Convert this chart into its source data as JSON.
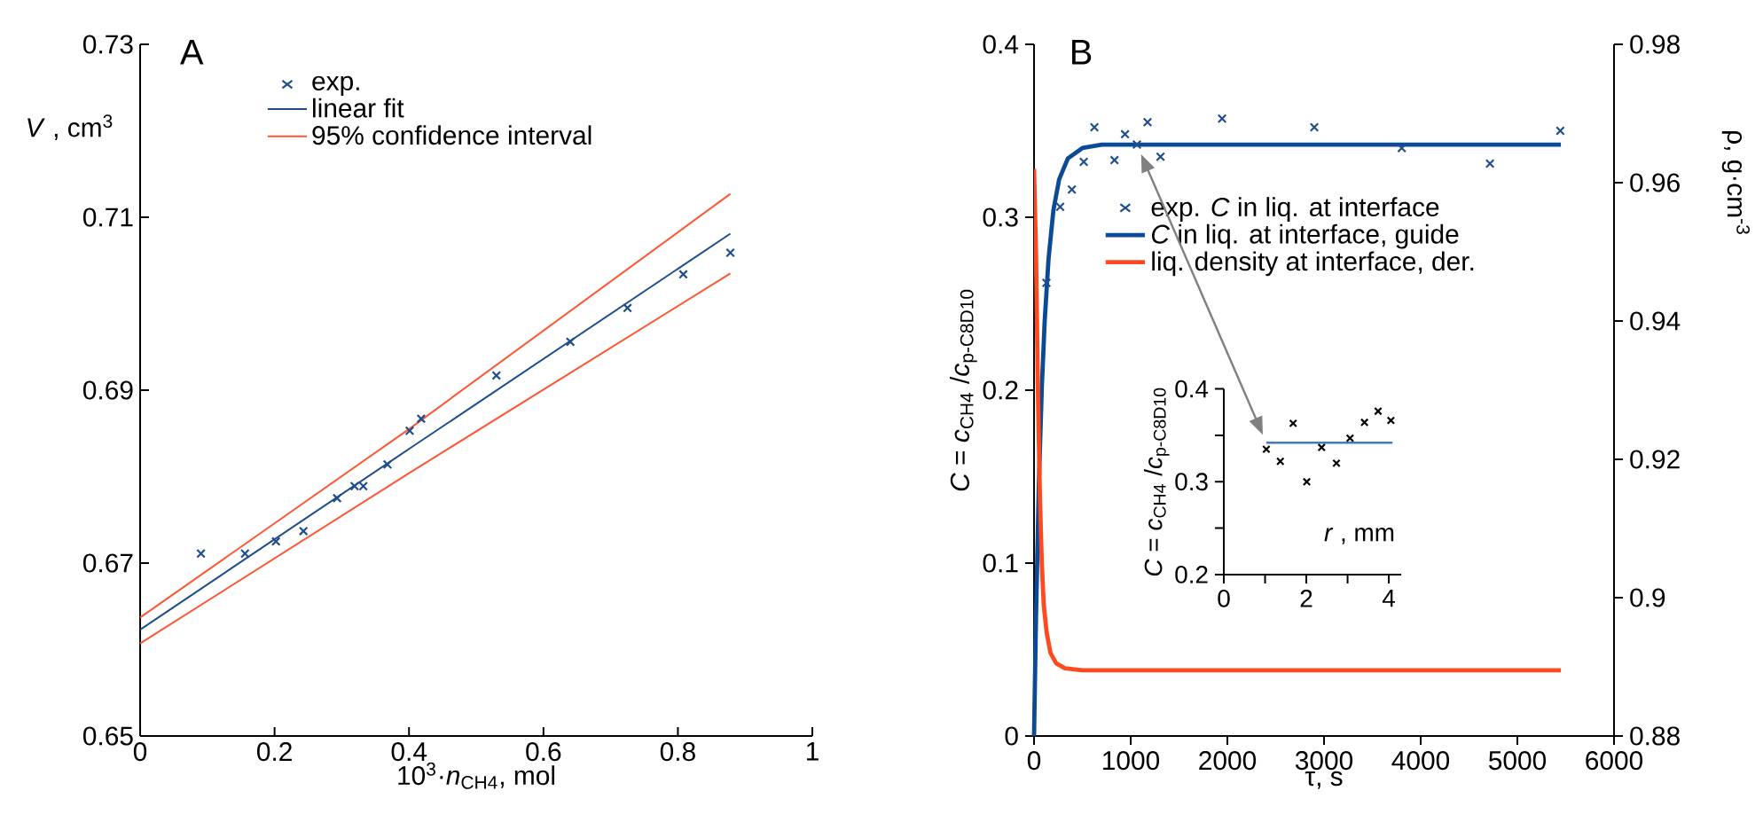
{
  "chart_data": [
    {
      "type": "scatter",
      "title": "A",
      "xlabel": "10$^{3}$·*n*$_{CH4}$,  mol",
      "ylabel": "*V* , cm$^{3}$",
      "xlim": [
        0,
        1
      ],
      "ylim": [
        0.65,
        0.73
      ],
      "xticks": [
        0,
        0.2,
        0.4,
        0.6,
        0.8,
        1
      ],
      "yticks": [
        0.65,
        0.67,
        0.69,
        0.71,
        0.73
      ],
      "legend": "top left",
      "series": [
        {
          "name": "exp.",
          "marker": "cross",
          "color": "#1f4e8c",
          "x": [
            0.0905,
            0.156,
            0.202,
            0.243,
            0.293,
            0.319,
            0.332,
            0.368,
            0.401,
            0.418,
            0.53,
            0.64,
            0.725,
            0.808,
            0.878
          ],
          "values": [
            0.6711,
            0.6711,
            0.6725,
            0.6737,
            0.6775,
            0.6789,
            0.6789,
            0.6814,
            0.6853,
            0.6867,
            0.6917,
            0.6956,
            0.6995,
            0.7034,
            0.7059
          ]
        },
        {
          "name": "linear fit",
          "type": "line",
          "color": "#1f4e8c",
          "x": [
            0,
            0.4,
            0.878
          ],
          "values": [
            0.6623,
            0.6832,
            0.7081
          ]
        },
        {
          "name": "95% confidence interval",
          "type": "line",
          "color": "#ff5533",
          "x": [
            0,
            0.4,
            0.878
          ],
          "values": [
            0.6637,
            0.6855,
            0.7127
          ]
        },
        {
          "type": "line",
          "color": "#ff5533",
          "x": [
            0,
            0.4,
            0.878
          ],
          "values": [
            0.6607,
            0.6804,
            0.7035
          ]
        }
      ]
    },
    {
      "type": "scatter",
      "title": "B",
      "xlabel": "τ,  s",
      "ylabel": "*C* = *c*$_{CH4}$ /*c*$_{p-C8D10}$",
      "y2label": "ρ, g·cm$^{-3}$",
      "xlim": [
        0,
        6000
      ],
      "ylim": [
        0,
        0.4
      ],
      "y2lim": [
        0.88,
        0.98
      ],
      "xticks": [
        0,
        1000,
        2000,
        3000,
        4000,
        5000,
        6000
      ],
      "yticks": [
        0,
        0.1,
        0.2,
        0.3,
        0.4
      ],
      "y2ticks": [
        0.88,
        0.9,
        0.92,
        0.94,
        0.96,
        0.98
      ],
      "legend": "left",
      "series": [
        {
          "name": "exp. *C*  in liq. at interface",
          "marker": "cross",
          "color": "#1f4e8c",
          "x": [
            128,
            270,
            391,
            514,
            624,
            832,
            941,
            1064,
            1174,
            1308,
            1945,
            2899,
            3804,
            4716,
            5444
          ],
          "values": [
            0.262,
            0.306,
            0.316,
            0.332,
            0.352,
            0.333,
            0.348,
            0.342,
            0.355,
            0.335,
            0.357,
            0.352,
            0.34,
            0.331,
            0.35
          ]
        },
        {
          "name": "*C*  in liq. at interface, guide",
          "type": "line",
          "color": "#0a4a96",
          "x": [
            0,
            20,
            50,
            80,
            110,
            150,
            200,
            260,
            350,
            500,
            700,
            1000,
            5450
          ],
          "values": [
            0,
            0.068,
            0.146,
            0.201,
            0.24,
            0.276,
            0.304,
            0.322,
            0.334,
            0.34,
            0.342,
            0.342,
            0.342
          ]
        },
        {
          "name": "liq. density at interface, der.",
          "type": "line",
          "axis": "y2",
          "color": "#ff4a1f",
          "x": [
            0,
            20,
            40,
            60,
            80,
            100,
            130,
            170,
            230,
            320,
            500,
            5450
          ],
          "values": [
            0.962,
            0.95,
            0.93,
            0.915,
            0.905,
            0.899,
            0.895,
            0.892,
            0.8905,
            0.8898,
            0.8895,
            0.8895
          ]
        }
      ]
    },
    {
      "type": "scatter",
      "xlabel": "*r* , mm",
      "ylabel": "*C* = *c*$_{CH4}$ /*c*$_{p-C8D10}$",
      "xlim": [
        0,
        4.3
      ],
      "ylim": [
        0.2,
        0.4
      ],
      "xticks": [
        0,
        {
          "value": 1,
          "label": null
        },
        2,
        {
          "value": 3,
          "label": null
        },
        4
      ],
      "yticks": [
        0.2,
        {
          "value": 0.25,
          "label": null
        },
        0.3,
        {
          "value": 0.35,
          "label": null
        },
        0.4
      ],
      "series": [
        {
          "marker": "cross",
          "color": "#000000",
          "x": [
            1.03,
            1.37,
            1.68,
            2.01,
            2.37,
            2.73,
            3.06,
            3.41,
            3.74,
            4.05
          ],
          "values": [
            0.335,
            0.322,
            0.363,
            0.3,
            0.337,
            0.32,
            0.347,
            0.364,
            0.376,
            0.366
          ]
        },
        {
          "type": "line",
          "color": "#4a7ab5",
          "x": [
            1.03,
            4.09
          ],
          "values": [
            0.342,
            0.342
          ]
        }
      ]
    }
  ]
}
